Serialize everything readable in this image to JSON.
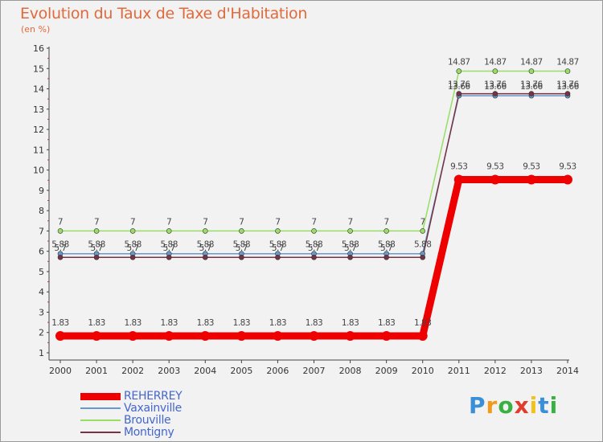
{
  "header": {
    "title": "Evolution du Taux de Taxe d'Habitation",
    "unit": "(en %)"
  },
  "chart_data": {
    "type": "line",
    "title": "Evolution du Taux de Taxe d'Habitation",
    "ylabel": "(en %)",
    "xlabel": "",
    "x": [
      "2000",
      "2001",
      "2002",
      "2003",
      "2004",
      "2005",
      "2006",
      "2007",
      "2008",
      "2009",
      "2010",
      "2011",
      "2012",
      "2013",
      "2014"
    ],
    "yticks": [
      "1",
      "2",
      "3",
      "4",
      "5",
      "6",
      "7",
      "8",
      "9",
      "10",
      "11",
      "12",
      "13",
      "14",
      "15",
      "16"
    ],
    "ylim": [
      0.5,
      16
    ],
    "grid": false,
    "legend_position": "bottom-left",
    "series": [
      {
        "name": "Brouville",
        "color": "#99dd66",
        "values": [
          7,
          7,
          7,
          7,
          7,
          7,
          7,
          7,
          7,
          7,
          7,
          14.87,
          14.87,
          14.87,
          14.87
        ],
        "labels": [
          "7",
          "7",
          "7",
          "7",
          "7",
          "7",
          "7",
          "7",
          "7",
          "7",
          "7",
          "14.87",
          "14.87",
          "14.87",
          "14.87"
        ]
      },
      {
        "name": "Vaxainville",
        "color": "#6699cc",
        "values": [
          5.88,
          5.88,
          5.88,
          5.88,
          5.88,
          5.88,
          5.88,
          5.88,
          5.88,
          5.88,
          5.88,
          13.66,
          13.66,
          13.66,
          13.66
        ],
        "labels": [
          "5.88",
          "5.88",
          "5.88",
          "5.88",
          "5.88",
          "5.88",
          "5.88",
          "5.88",
          "5.88",
          "5.88",
          "5.88",
          "13.66",
          "13.66",
          "13.66",
          "13.66"
        ]
      },
      {
        "name": "Montigny",
        "color": "#773344",
        "values": [
          5.7,
          5.7,
          5.7,
          5.7,
          5.7,
          5.7,
          5.7,
          5.7,
          5.7,
          5.7,
          5.7,
          13.76,
          13.76,
          13.76,
          13.76
        ],
        "labels": [
          "5.7",
          "5.7",
          "5.7",
          "5.7",
          "5.7",
          "5.7",
          "5.7",
          "5.7",
          "5.7",
          "5.7",
          "",
          "13.76",
          "13.76",
          "13.76",
          "13.76"
        ]
      },
      {
        "name": "REHERREY",
        "color": "#ee0000",
        "values": [
          1.83,
          1.83,
          1.83,
          1.83,
          1.83,
          1.83,
          1.83,
          1.83,
          1.83,
          1.83,
          1.83,
          9.53,
          9.53,
          9.53,
          9.53
        ],
        "labels": [
          "1.83",
          "1.83",
          "1.83",
          "1.83",
          "1.83",
          "1.83",
          "1.83",
          "1.83",
          "1.83",
          "1.83",
          "1.83",
          "9.53",
          "9.53",
          "9.53",
          "9.53"
        ]
      }
    ]
  },
  "legend": {
    "items": [
      {
        "name": "REHERREY",
        "color": "#ee0000"
      },
      {
        "name": "Vaxainville",
        "color": "#6699cc"
      },
      {
        "name": "Brouville",
        "color": "#99dd66"
      },
      {
        "name": "Montigny",
        "color": "#773344"
      }
    ]
  },
  "logo": {
    "letters": [
      "P",
      "r",
      "o",
      "x",
      "i",
      "t",
      "i"
    ],
    "colors": [
      "#3a8fd8",
      "#f29a1a",
      "#3ab043",
      "#e23b2e",
      "#f2c21a",
      "#3a8fd8",
      "#3ab043"
    ]
  }
}
